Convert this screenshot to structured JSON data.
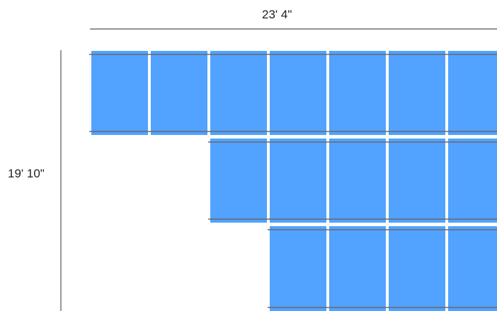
{
  "dimensions": {
    "width_label": "23' 4\"",
    "height_label": "19' 10\""
  },
  "colors": {
    "panel": "#52a2ff",
    "rail": "#6b6b6b",
    "dimension_line": "#555555",
    "background": "#ffffff"
  },
  "panel_rows": [
    {
      "row": 1,
      "panel_count": 7
    },
    {
      "row": 2,
      "panel_count": 5
    },
    {
      "row": 3,
      "panel_count": 4
    }
  ]
}
